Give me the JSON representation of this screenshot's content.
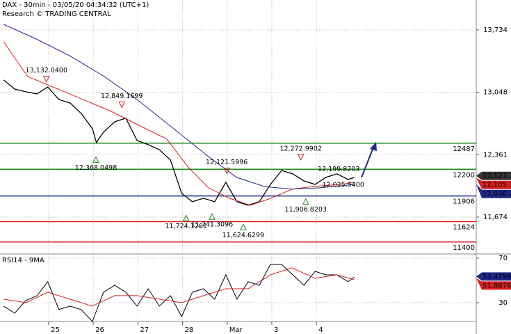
{
  "chart_data": [
    {
      "type": "line",
      "title": "DAX - 30min - 03/05/20 04:34:32 (UTC+1)",
      "subtitle": "Research © TRADING CENTRAL",
      "xlim": [
        -1.09,
        9.58
      ],
      "xticks": [
        {
          "value": 0,
          "label": "25"
        },
        {
          "value": 1,
          "label": "26"
        },
        {
          "value": 2,
          "label": "27"
        },
        {
          "value": 3,
          "label": "28"
        },
        {
          "value": 4,
          "label": "Mar"
        },
        {
          "value": 5,
          "label": "3"
        },
        {
          "value": 6,
          "label": "4"
        }
      ],
      "ylim": [
        11268,
        14063
      ],
      "yticks": [
        {
          "value": 11674,
          "label": "11,674"
        },
        {
          "value": 12361,
          "label": "12,361"
        },
        {
          "value": 13048,
          "label": "13,048"
        },
        {
          "value": 13734,
          "label": "13,734"
        }
      ],
      "series": [
        {
          "color": "#000000",
          "x": [
            -1.01,
            -0.76,
            -0.51,
            -0.26,
            -0.02,
            0.23,
            0.48,
            0.73,
            0.98,
            1.07,
            1.23,
            1.48,
            1.73,
            1.98,
            2.23,
            2.48,
            2.73,
            2.98,
            3.22,
            3.47,
            3.72,
            3.97,
            4.22,
            4.47,
            4.72,
            4.97,
            5.22,
            5.47,
            5.72,
            5.97,
            6.21,
            6.46,
            6.71,
            6.85
          ],
          "values": [
            13183,
            13083,
            13053,
            13030,
            13106,
            12968,
            12930,
            12815,
            12647,
            12494,
            12609,
            12723,
            12762,
            12517,
            12471,
            12417,
            12302,
            11935,
            11843,
            11881,
            11843,
            12057,
            11843,
            11804,
            11843,
            12034,
            12187,
            12149,
            12072,
            12034,
            12111,
            12149,
            12087,
            12111
          ]
        },
        {
          "color": "#d62020",
          "x": [
            -1.01,
            -0.47,
            0.47,
            1.4,
            2.02,
            2.65,
            3.12,
            3.58,
            4.05,
            4.52,
            4.98,
            5.45,
            5.92,
            6.54,
            6.85
          ],
          "values": [
            13604,
            13221,
            13030,
            12838,
            12685,
            12532,
            12226,
            11996,
            11881,
            11804,
            11881,
            11981,
            12011,
            12034,
            12057
          ]
        },
        {
          "color": "#1f2a8a",
          "x": [
            -1.01,
            -0.31,
            0.47,
            1.25,
            2.02,
            2.8,
            3.58,
            4.21,
            4.83,
            5.45,
            6.07,
            6.85
          ],
          "values": [
            13795,
            13642,
            13450,
            13221,
            12953,
            12647,
            12340,
            12111,
            12011,
            11981,
            11996,
            12034
          ]
        }
      ],
      "levels": [
        {
          "value": 12487,
          "color": "#1a8a1a"
        },
        {
          "value": 12200,
          "color": "#1a8a1a"
        },
        {
          "value": 11906,
          "color": "#1f2a8a"
        },
        {
          "value": 11624,
          "color": "#d62020"
        },
        {
          "value": 11400,
          "color": "#d62020"
        }
      ],
      "annotations": [
        {
          "x": -0.05,
          "value": 13132.04,
          "label": "13,132.0400",
          "kind": "high"
        },
        {
          "x": 1.64,
          "value": 12849.1699,
          "label": "12,849.1699",
          "kind": "high"
        },
        {
          "x": 1.06,
          "value": 12368.0498,
          "label": "12,368.0498",
          "kind": "low"
        },
        {
          "x": 3.99,
          "value": 12121.5996,
          "label": "12,121.5996",
          "kind": "high"
        },
        {
          "x": 5.65,
          "value": 12272.9902,
          "label": "12,272.9902",
          "kind": "high"
        },
        {
          "x": 6.5,
          "value": 12199.8203,
          "label": "12,199.8203",
          "kind": "target"
        },
        {
          "x": 3.08,
          "value": 11724.1201,
          "label": "11,724.1201",
          "kind": "low"
        },
        {
          "x": 3.66,
          "value": 11741.3096,
          "label": "11,741.3096",
          "kind": "low"
        },
        {
          "x": 4.36,
          "value": 11624.6299,
          "label": "11,624.6299",
          "kind": "low"
        },
        {
          "x": 5.76,
          "value": 11906.8203,
          "label": "11,906.8203",
          "kind": "low"
        },
        {
          "x": 6.6,
          "value": 12025.54,
          "label": "12,025.5400",
          "kind": "target"
        }
      ],
      "tags": [
        {
          "value": 12127.7,
          "label": "12,127.7",
          "color": "#333333"
        },
        {
          "value": 12105.3,
          "label": "12,105.3",
          "color": "#d62020"
        },
        {
          "value": 12036.2,
          "label": "12,036.2",
          "color": "#1f2a8a"
        }
      ]
    },
    {
      "type": "line",
      "title": "RSI14 - 9MA",
      "xlim": [
        -1.09,
        9.58
      ],
      "ylim": [
        13.1,
        73.75
      ],
      "yticks": [
        30,
        70
      ],
      "series": [
        {
          "color": "#000000",
          "x": [
            -1.01,
            -0.76,
            -0.51,
            -0.26,
            -0.02,
            0.23,
            0.48,
            0.73,
            0.98,
            1.23,
            1.48,
            1.73,
            1.98,
            2.23,
            2.48,
            2.73,
            2.98,
            3.22,
            3.47,
            3.72,
            3.97,
            4.22,
            4.47,
            4.72,
            4.97,
            5.22,
            5.47,
            5.72,
            5.97,
            6.21,
            6.46,
            6.71,
            6.85
          ],
          "values": [
            26.9,
            20.6,
            31.9,
            36.3,
            48.8,
            23.8,
            26.9,
            23.8,
            13.1,
            39.4,
            45.6,
            39.4,
            26.9,
            42.5,
            26.9,
            36.3,
            17.5,
            39.4,
            42.5,
            33.1,
            55,
            33.1,
            48.8,
            45.6,
            64.4,
            64.4,
            55,
            45.6,
            58.1,
            55,
            55,
            48.8,
            53.1
          ]
        },
        {
          "color": "#d62020",
          "x": [
            -1.01,
            -0.51,
            -0.02,
            0.48,
            0.98,
            1.48,
            1.98,
            2.48,
            2.98,
            3.47,
            3.97,
            4.47,
            4.97,
            5.45,
            5.97,
            6.46,
            6.85
          ],
          "values": [
            33.1,
            30,
            39.4,
            33.1,
            26.9,
            36.3,
            36.3,
            33.1,
            30,
            36.3,
            42.5,
            42.5,
            55,
            61.3,
            51.9,
            55,
            50.6
          ]
        }
      ],
      "tags": [
        {
          "value": 53.4796,
          "color": "#1f2a8a"
        },
        {
          "value": 51.8876,
          "color": "#d62020"
        }
      ]
    }
  ]
}
